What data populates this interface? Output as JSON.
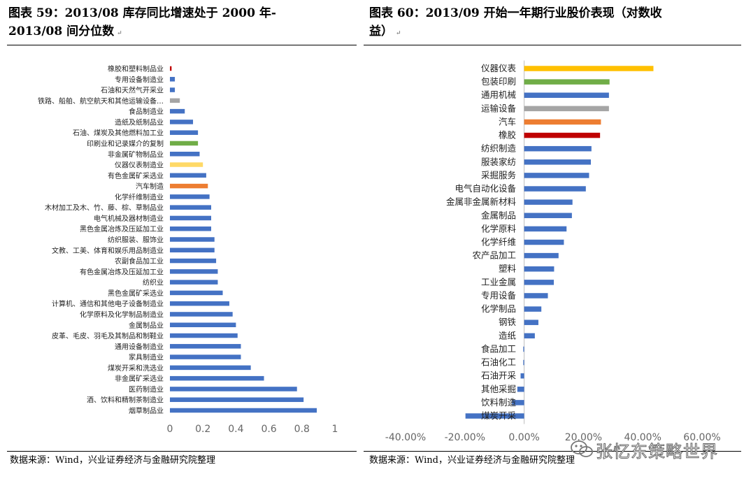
{
  "header": {
    "left_title_line1": "图表 59：2013/08 库存同比增速处于 2000 年-",
    "left_title_line2": "2013/08 间分位数",
    "right_title_line1": "图表 60：2013/09 开始一年期行业股价表现（对数收",
    "right_title_line2": "益）",
    "para_mark": "↵"
  },
  "footer": {
    "left_source": "数据来源：Wind，兴业证券经济与金融研究院整理",
    "right_source": "数据来源：Wind，兴业证券经济与金融研究院整理"
  },
  "watermark": {
    "text": "张忆东策略世界"
  },
  "colors": {
    "blue": "#4472C4",
    "red": "#C00000",
    "gray": "#A5A5A5",
    "green": "#70AD47",
    "yellow_light": "#FFD966",
    "orange": "#ED7D31",
    "gold": "#FFC000"
  },
  "chart_data": [
    {
      "type": "bar",
      "orientation": "horizontal",
      "title": "2013/08 库存同比增速处于 2000 年-2013/08 间分位数",
      "categories": [
        "橡胶和塑料制品业",
        "专用设备制造业",
        "石油和天然气开采业",
        "铁路、船舶、航空航天和其他运输设备…",
        "食品制造业",
        "造纸及纸制品业",
        "石油、煤炭及其他燃料加工业",
        "印刷业和记录媒介的复制",
        "非金属矿物制品业",
        "仪器仪表制造业",
        "有色金属矿采选业",
        "汽车制造",
        "化学纤维制造业",
        "木材加工及木、竹、藤、棕、草制品业",
        "电气机械及器材制造业",
        "黑色金属冶炼及压延加工业",
        "纺织服装、服饰业",
        "文教、工美、体育和娱乐用品制造业",
        "农副食品加工业",
        "有色金属冶炼及压延加工业",
        "纺织业",
        "黑色金属矿采选业",
        "计算机、通信和其他电子设备制造业",
        "化学原料及化学制品制造业",
        "金属制品业",
        "皮革、毛皮、羽毛及其制品和制鞋业",
        "通用设备制造业",
        "家具制造业",
        "煤炭开采和洗选业",
        "非金属矿采选业",
        "医药制造业",
        "酒、饮料和精制茶制造业",
        "烟草制品业"
      ],
      "values": [
        0.01,
        0.03,
        0.03,
        0.06,
        0.09,
        0.14,
        0.17,
        0.17,
        0.18,
        0.2,
        0.22,
        0.23,
        0.24,
        0.25,
        0.25,
        0.25,
        0.27,
        0.27,
        0.28,
        0.29,
        0.29,
        0.32,
        0.36,
        0.38,
        0.4,
        0.41,
        0.43,
        0.43,
        0.49,
        0.57,
        0.77,
        0.81,
        0.89
      ],
      "highlight_colors": {
        "橡胶和塑料制品业": "#C00000",
        "铁路、船舶、航空航天和其他运输设备…": "#A5A5A5",
        "印刷业和记录媒介的复制": "#70AD47",
        "仪器仪表制造业": "#FFD966",
        "汽车制造": "#ED7D31"
      },
      "default_color": "#4472C4",
      "xlim": [
        0,
        1
      ],
      "xticks": [
        0,
        0.2,
        0.4,
        0.6,
        0.8,
        1
      ],
      "xtick_labels": [
        "0",
        "0.2",
        "0.4",
        "0.6",
        "0.8",
        "1"
      ]
    },
    {
      "type": "bar",
      "orientation": "horizontal",
      "title": "2013/09 开始一年期行业股价表现（对数收益）",
      "categories": [
        "仪器仪表",
        "包装印刷",
        "通用机械",
        "运输设备",
        "汽车",
        "橡胶",
        "纺织制造",
        "服装家纺",
        "采掘服务",
        "电气自动化设备",
        "金属非金属新材料",
        "金属制品",
        "化学原料",
        "化学纤维",
        "农产品加工",
        "塑料",
        "工业金属",
        "专用设备",
        "化学制品",
        "钢铁",
        "造纸",
        "食品加工",
        "石油化工",
        "石油开采",
        "其他采掘",
        "饮料制造",
        "煤炭开采"
      ],
      "values": [
        0.436,
        0.288,
        0.286,
        0.286,
        0.259,
        0.256,
        0.227,
        0.225,
        0.219,
        0.208,
        0.163,
        0.161,
        0.143,
        0.134,
        0.116,
        0.101,
        0.1,
        0.08,
        0.058,
        0.048,
        0.036,
        -0.003,
        -0.003,
        -0.012,
        -0.023,
        -0.041,
        -0.198
      ],
      "highlight_colors": {
        "仪器仪表": "#FFC000",
        "包装印刷": "#70AD47",
        "运输设备": "#A5A5A5",
        "汽车": "#ED7D31",
        "橡胶": "#C00000"
      },
      "default_color": "#4472C4",
      "xlim": [
        -0.4,
        0.6
      ],
      "xticks": [
        -0.4,
        -0.2,
        0,
        0.2,
        0.4,
        0.6
      ],
      "xtick_labels": [
        "-40.00%",
        "-20.00%",
        "0.00%",
        "20.00%",
        "40.00%",
        "60.00%"
      ]
    }
  ]
}
